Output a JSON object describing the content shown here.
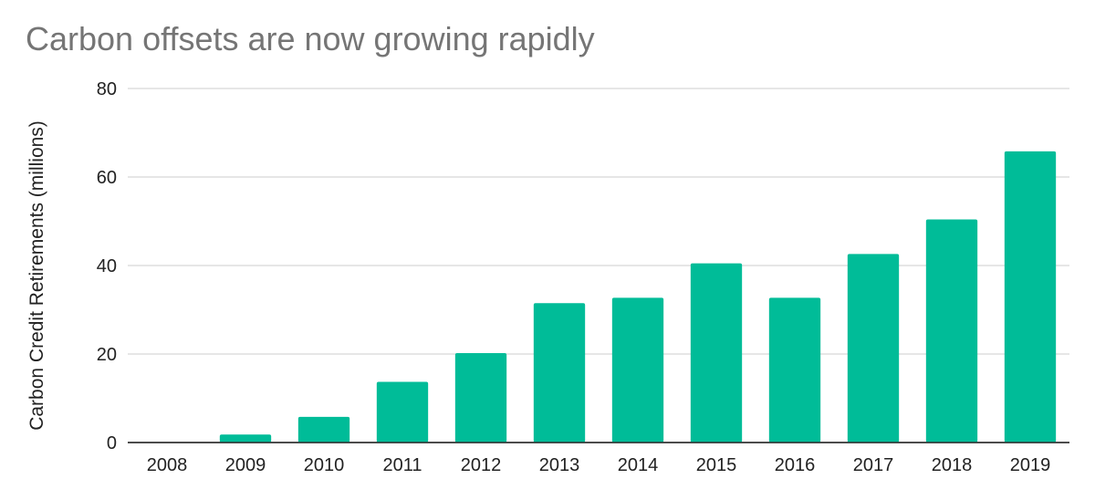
{
  "chart_data": {
    "type": "bar",
    "title": "Carbon offsets are now growing rapidly",
    "xlabel": "",
    "ylabel": "Carbon Credit Retirements (millions)",
    "categories": [
      "2008",
      "2009",
      "2010",
      "2011",
      "2012",
      "2013",
      "2014",
      "2015",
      "2016",
      "2017",
      "2018",
      "2019"
    ],
    "values": [
      0,
      1.8,
      5.8,
      13.7,
      20.2,
      31.5,
      32.7,
      40.5,
      32.7,
      42.6,
      50.4,
      65.8
    ],
    "ylim": [
      0,
      80
    ],
    "yticks": [
      "0",
      "20",
      "40",
      "60",
      "80"
    ],
    "grid": true,
    "legend": "none",
    "bar_color": "#00BC98",
    "grid_color": "#CCCCCC",
    "axis_color": "#333333"
  }
}
